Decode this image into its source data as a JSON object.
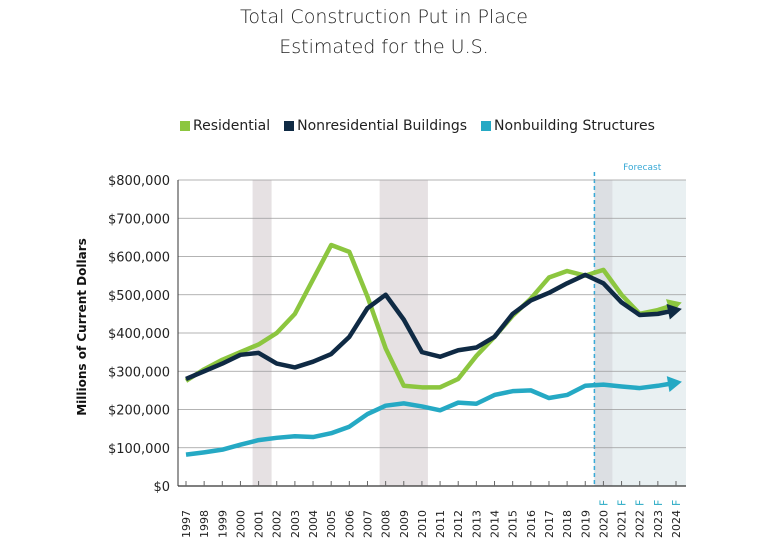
{
  "title_line1": "Total Construction Put in Place",
  "title_line2": "Estimated for the U.S.",
  "chart_data": {
    "type": "line",
    "title": "Total Construction Put in Place Estimated for the U.S.",
    "ylabel": "Millions of Current Dollars",
    "xlabel": "",
    "ylim": [
      0,
      800000
    ],
    "yticks": [
      "$0",
      "$100,000",
      "$200,000",
      "$300,000",
      "$400,000",
      "$500,000",
      "$600,000",
      "$700,000",
      "$800,000"
    ],
    "categories": [
      "1997",
      "1998",
      "1999",
      "2000",
      "2001",
      "2002",
      "2003",
      "2004",
      "2005",
      "2006",
      "2007",
      "2008",
      "2009",
      "2010",
      "2011",
      "2012",
      "2013",
      "2014",
      "2015",
      "2016",
      "2017",
      "2018",
      "2019",
      "2020 F",
      "2021 F",
      "2022 F",
      "2023 F",
      "2024 F"
    ],
    "grid": true,
    "legend_placement": "top",
    "forecast_label": "Forecast",
    "forecast_start": "2020 F",
    "shaded_periods": [
      [
        "2001",
        "2001"
      ],
      [
        "2008",
        "2010"
      ]
    ],
    "series": [
      {
        "name": "Residential",
        "color": "#8cc63f",
        "values": [
          275000,
          305000,
          330000,
          350000,
          370000,
          400000,
          450000,
          540000,
          630000,
          612000,
          495000,
          360000,
          262000,
          258000,
          258000,
          280000,
          340000,
          390000,
          445000,
          490000,
          545000,
          562000,
          550000,
          565000,
          500000,
          450000,
          460000,
          475000
        ]
      },
      {
        "name": "Nonresidential Buildings",
        "color": "#0f2a44",
        "values": [
          280000,
          300000,
          320000,
          343000,
          348000,
          320000,
          310000,
          325000,
          345000,
          390000,
          465000,
          500000,
          435000,
          350000,
          338000,
          355000,
          362000,
          390000,
          450000,
          485000,
          505000,
          530000,
          552000,
          530000,
          480000,
          447000,
          450000,
          460000
        ]
      },
      {
        "name": "Nonbuilding Structures",
        "color": "#25a9c4",
        "values": [
          82000,
          88000,
          95000,
          108000,
          120000,
          126000,
          130000,
          128000,
          138000,
          155000,
          188000,
          210000,
          216000,
          208000,
          198000,
          218000,
          215000,
          238000,
          248000,
          250000,
          230000,
          238000,
          262000,
          265000,
          260000,
          256000,
          262000,
          270000
        ]
      }
    ]
  }
}
